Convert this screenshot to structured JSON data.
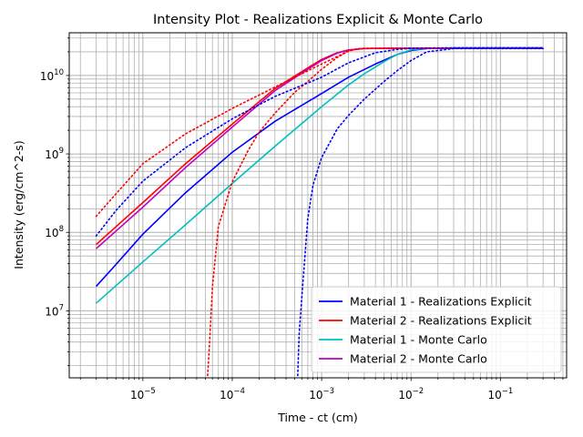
{
  "chart_data": {
    "type": "line",
    "title": "Intensity Plot - Realizations Explicit & Monte Carlo",
    "xlabel": "Time - ct (cm)",
    "ylabel": "Intensity (erg/cm^2-s)",
    "xscale": "log",
    "yscale": "log",
    "xlim": [
      1.5e-06,
      0.55
    ],
    "ylim": [
      1400000.0,
      35000000000.0
    ],
    "grid": true,
    "legend_position": "lower-right",
    "x_ticks": [
      {
        "value": 1e-05,
        "base": "10",
        "exp": "−5"
      },
      {
        "value": 0.0001,
        "base": "10",
        "exp": "−4"
      },
      {
        "value": 0.001,
        "base": "10",
        "exp": "−3"
      },
      {
        "value": 0.01,
        "base": "10",
        "exp": "−2"
      },
      {
        "value": 0.1,
        "base": "10",
        "exp": "−1"
      }
    ],
    "y_ticks": [
      {
        "value": 10000000.0,
        "base": "10",
        "exp": "7"
      },
      {
        "value": 100000000.0,
        "base": "10",
        "exp": "8"
      },
      {
        "value": 1000000000.0,
        "base": "10",
        "exp": "9"
      },
      {
        "value": 10000000000.0,
        "base": "10",
        "exp": "10"
      }
    ],
    "series": [
      {
        "name": "Material 1 - Realizations Explicit",
        "color": "#0000ff",
        "style": "solid",
        "legend": true,
        "x": [
          3e-06,
          5e-06,
          1e-05,
          3e-05,
          0.0001,
          0.0003,
          0.001,
          0.002,
          0.004,
          0.007,
          0.01,
          0.015,
          0.03,
          0.1,
          0.3
        ],
        "y": [
          20500000.0,
          39000000.0,
          95000000.0,
          320000000.0,
          1050000000.0,
          2600000000.0,
          5900000000.0,
          9500000000.0,
          14000000000.0,
          18500000000.0,
          20800000000.0,
          22000000000.0,
          22400000000.0,
          22500000000.0,
          22500000000.0
        ]
      },
      {
        "name": "Material 2 - Realizations Explicit",
        "color": "#ff0000",
        "style": "solid",
        "legend": true,
        "x": [
          3e-06,
          1e-05,
          3e-05,
          0.0001,
          0.0003,
          0.0007,
          0.001,
          0.0015,
          0.002,
          0.003,
          0.005,
          0.01,
          0.1,
          0.3
        ],
        "y": [
          70000000.0,
          240000000.0,
          750000000.0,
          2400000000.0,
          6800000000.0,
          12500000000.0,
          16000000000.0,
          19500000000.0,
          21200000000.0,
          22000000000.0,
          22200000000.0,
          22200000000.0,
          22200000000.0,
          22200000000.0
        ]
      },
      {
        "name": "Material 1 - Monte Carlo",
        "color": "#00bfbf",
        "style": "solid",
        "legend": true,
        "x": [
          3e-06,
          1e-05,
          3e-05,
          0.0001,
          0.0003,
          0.001,
          0.002,
          0.003,
          0.005,
          0.007,
          0.01,
          0.015,
          0.03,
          0.1,
          0.3
        ],
        "y": [
          12500000.0,
          42000000.0,
          125000000.0,
          420000000.0,
          1250000000.0,
          4000000000.0,
          7600000000.0,
          10500000000.0,
          15000000000.0,
          18500000000.0,
          21200000000.0,
          22200000000.0,
          22500000000.0,
          22500000000.0,
          22500000000.0
        ]
      },
      {
        "name": "Material 2 - Monte Carlo",
        "color": "#bf00bf",
        "style": "solid",
        "legend": true,
        "x": [
          3e-06,
          1e-05,
          3e-05,
          0.0001,
          0.0003,
          0.0007,
          0.001,
          0.0015,
          0.002,
          0.003,
          0.005,
          0.01,
          0.1,
          0.3
        ],
        "y": [
          62000000.0,
          210000000.0,
          670000000.0,
          2200000000.0,
          6400000000.0,
          12000000000.0,
          15500000000.0,
          19300000000.0,
          21000000000.0,
          22000000000.0,
          22200000000.0,
          22200000000.0,
          22200000000.0,
          22200000000.0
        ]
      },
      {
        "name": "",
        "color": "#ff0000",
        "style": "dotted",
        "legend": false,
        "x": [
          3e-06,
          5e-06,
          1e-05,
          3e-05,
          0.0001,
          0.0003,
          0.001,
          0.002,
          0.0025,
          0.003,
          0.005,
          0.01,
          0.1,
          0.3
        ],
        "y": [
          160000000.0,
          310000000.0,
          750000000.0,
          1800000000.0,
          3800000000.0,
          7100000000.0,
          14000000000.0,
          20500000000.0,
          21800000000.0,
          22200000000.0,
          22200000000.0,
          22200000000.0,
          22200000000.0,
          22200000000.0
        ]
      },
      {
        "name": "",
        "color": "#ff0000",
        "style": "dotted",
        "legend": false,
        "x": [
          5.3e-05,
          5.5e-05,
          6e-05,
          7e-05,
          0.0001,
          0.00015,
          0.0002,
          0.0003,
          0.0005,
          0.0007,
          0.001,
          0.0015,
          0.002,
          0.0025,
          0.003,
          0.005,
          0.01,
          0.3
        ],
        "y": [
          1500000.0,
          3000000.0,
          20000000.0,
          120000000.0,
          440000000.0,
          1100000000.0,
          1900000000.0,
          3300000000.0,
          6100000000.0,
          8400000000.0,
          12000000000.0,
          17000000000.0,
          20500000000.0,
          21800000000.0,
          22200000000.0,
          22200000000.0,
          22200000000.0,
          22200000000.0
        ]
      },
      {
        "name": "",
        "color": "#0000ff",
        "style": "dotted",
        "legend": false,
        "x": [
          3e-06,
          5e-06,
          1e-05,
          3e-05,
          0.0001,
          0.0003,
          0.001,
          0.002,
          0.004,
          0.007,
          0.01,
          0.015,
          0.03,
          0.1,
          0.3
        ],
        "y": [
          90000000.0,
          190000000.0,
          450000000.0,
          1200000000.0,
          2800000000.0,
          5400000000.0,
          9500000000.0,
          14500000000.0,
          19500000000.0,
          21500000000.0,
          22200000000.0,
          22400000000.0,
          22500000000.0,
          22500000000.0,
          22500000000.0
        ]
      },
      {
        "name": "",
        "color": "#0000ff",
        "style": "dotted",
        "legend": false,
        "x": [
          0.00054,
          0.00056,
          0.0006,
          0.0007,
          0.0008,
          0.001,
          0.0015,
          0.002,
          0.003,
          0.005,
          0.007,
          0.01,
          0.015,
          0.03,
          0.3
        ],
        "y": [
          1500000.0,
          5000000.0,
          15000000.0,
          150000000.0,
          400000000.0,
          900000000.0,
          2100000000.0,
          3100000000.0,
          5000000000.0,
          8400000000.0,
          11500000000.0,
          15500000000.0,
          20000000000.0,
          22000000000.0,
          22000000000.0
        ]
      }
    ]
  }
}
